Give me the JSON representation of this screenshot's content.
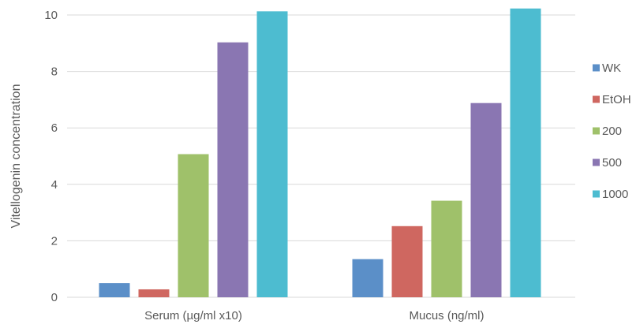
{
  "chart_data": {
    "type": "bar",
    "title": "",
    "xlabel": "",
    "ylabel": "Vitellogenin concentration",
    "ylim": [
      0,
      10
    ],
    "yticks": [
      0,
      2,
      4,
      6,
      8,
      10
    ],
    "grid": "horizontal",
    "legend_position": "right",
    "categories": [
      "Serum (µg/ml x10)",
      "Mucus (ng/ml)"
    ],
    "series": [
      {
        "name": "WK",
        "color": "#5b8fc8",
        "values": [
          0.5,
          1.35
        ]
      },
      {
        "name": "EtOH",
        "color": "#cf6760",
        "values": [
          0.28,
          2.52
        ]
      },
      {
        "name": "200",
        "color": "#9fc16a",
        "values": [
          5.07,
          3.42
        ]
      },
      {
        "name": "500",
        "color": "#8a76b2",
        "values": [
          9.03,
          6.88
        ]
      },
      {
        "name": "1000",
        "color": "#4dbcd0",
        "values": [
          10.13,
          10.23
        ]
      }
    ]
  }
}
